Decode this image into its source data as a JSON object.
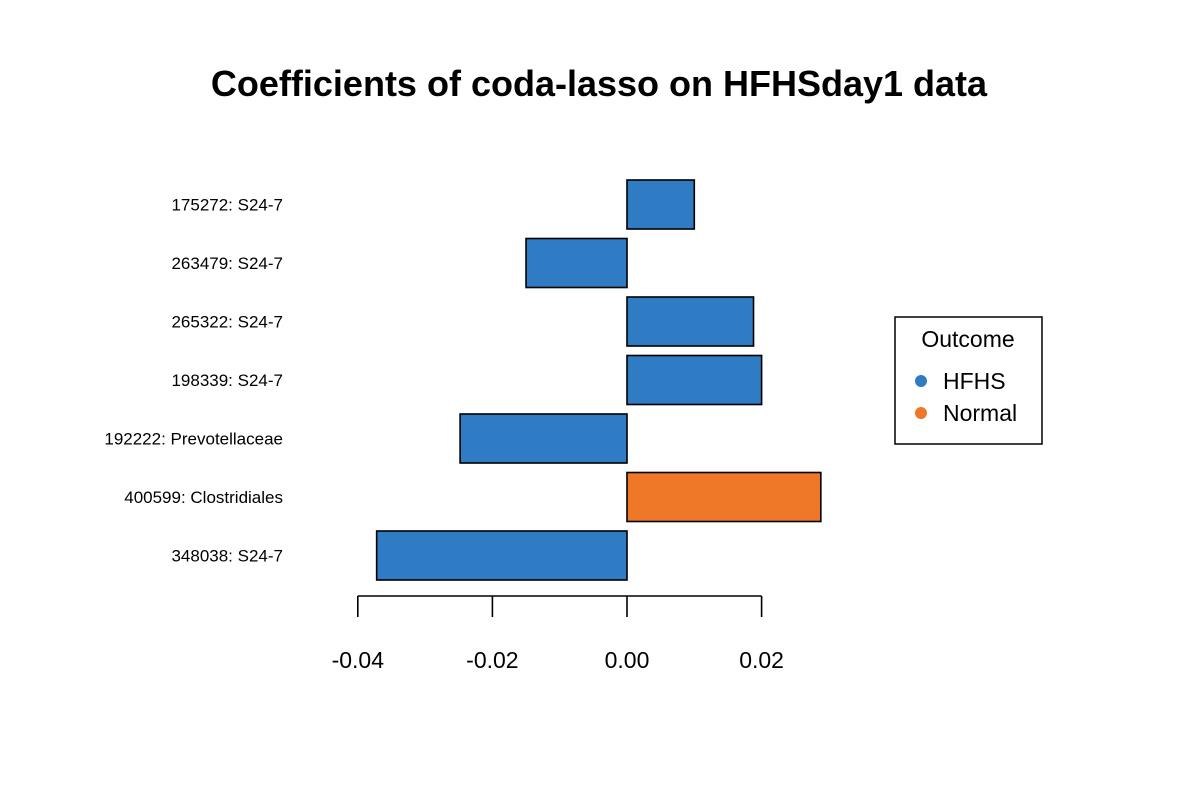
{
  "chart_data": {
    "type": "bar",
    "orientation": "horizontal",
    "title": "Coefficients of coda-lasso on HFHSday1 data",
    "xlabel": "",
    "ylabel": "",
    "categories": [
      "175272: S24-7",
      "263479: S24-7",
      "265322: S24-7",
      "198339: S24-7",
      "192222: Prevotellaceae",
      "400599: Clostridiales",
      "348038: S24-7"
    ],
    "values": [
      0.01,
      -0.015,
      0.0188,
      0.02,
      -0.0248,
      0.0288,
      -0.0372
    ],
    "outcome": [
      "HFHS",
      "HFHS",
      "HFHS",
      "HFHS",
      "HFHS",
      "Normal",
      "HFHS"
    ],
    "xlim": [
      -0.04,
      0.02
    ],
    "xticks": [
      -0.04,
      -0.02,
      0.0,
      0.02
    ],
    "xtick_labels": [
      "-0.04",
      "-0.02",
      "0.00",
      "0.02"
    ],
    "grid": false,
    "legend": {
      "title": "Outcome",
      "placement": "right",
      "entries": [
        {
          "label": "HFHS",
          "color": "#2f7bc4"
        },
        {
          "label": "Normal",
          "color": "#ef7728"
        }
      ]
    }
  }
}
